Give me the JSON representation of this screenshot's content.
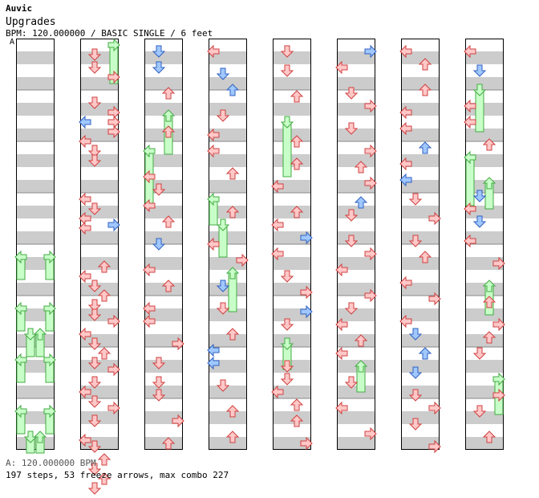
{
  "header": {
    "artist": "Auvic",
    "title": "Upgrades",
    "info": "BPM: 120.000000 / BASIC SINGLE / 6 feet",
    "bpm_marker": "A"
  },
  "footer": {
    "bpm_note": "A: 120.000000 BPM",
    "stats": "197 steps, 53 freeze arrows, max combo 227"
  },
  "colors": {
    "stripe": "#cccccc",
    "quarter_arrow": "#ffc8c8",
    "eighth_arrow": "#a0c8ff",
    "freeze": "#c8ffc8",
    "freeze_border": "#44aa44",
    "arrow_border": "#d04040",
    "eighth_border": "#3060c0",
    "column_border": "#000000"
  },
  "columns": [
    {
      "freezes": [],
      "arrows": []
    },
    {
      "freezes": [
        [
          3,
          0,
          12
        ]
      ],
      "arrows": [
        [
          1,
          3,
          "q"
        ],
        [
          1,
          7,
          "q"
        ],
        [
          3,
          10,
          "q"
        ],
        [
          1,
          18,
          "q"
        ],
        [
          3,
          21,
          "q"
        ],
        [
          0,
          24,
          "e"
        ],
        [
          3,
          24,
          "q"
        ],
        [
          3,
          27,
          "q"
        ],
        [
          0,
          30,
          "q"
        ],
        [
          1,
          33,
          "q"
        ],
        [
          1,
          36,
          "q"
        ],
        [
          0,
          48,
          "q"
        ],
        [
          1,
          51,
          "q"
        ],
        [
          0,
          54,
          "q"
        ],
        [
          3,
          56,
          "e"
        ],
        [
          0,
          57,
          "q"
        ],
        [
          2,
          69,
          "q"
        ],
        [
          0,
          72,
          "q"
        ],
        [
          1,
          75,
          "q"
        ],
        [
          2,
          78,
          "q"
        ],
        [
          1,
          81,
          "q"
        ],
        [
          1,
          84,
          "q"
        ],
        [
          3,
          86,
          "q"
        ],
        [
          0,
          90,
          "q"
        ],
        [
          1,
          93,
          "q"
        ],
        [
          2,
          96,
          "q"
        ],
        [
          1,
          99,
          "q"
        ],
        [
          3,
          101,
          "q"
        ],
        [
          1,
          105,
          "q"
        ],
        [
          0,
          108,
          "q"
        ],
        [
          1,
          111,
          "q"
        ],
        [
          3,
          113,
          "q"
        ],
        [
          1,
          117,
          "q"
        ],
        [
          0,
          123,
          "q"
        ],
        [
          1,
          125,
          "q"
        ],
        [
          2,
          129,
          "q"
        ],
        [
          1,
          132,
          "q"
        ],
        [
          2,
          135,
          "q"
        ],
        [
          1,
          138,
          "q"
        ]
      ]
    }
  ]
}
